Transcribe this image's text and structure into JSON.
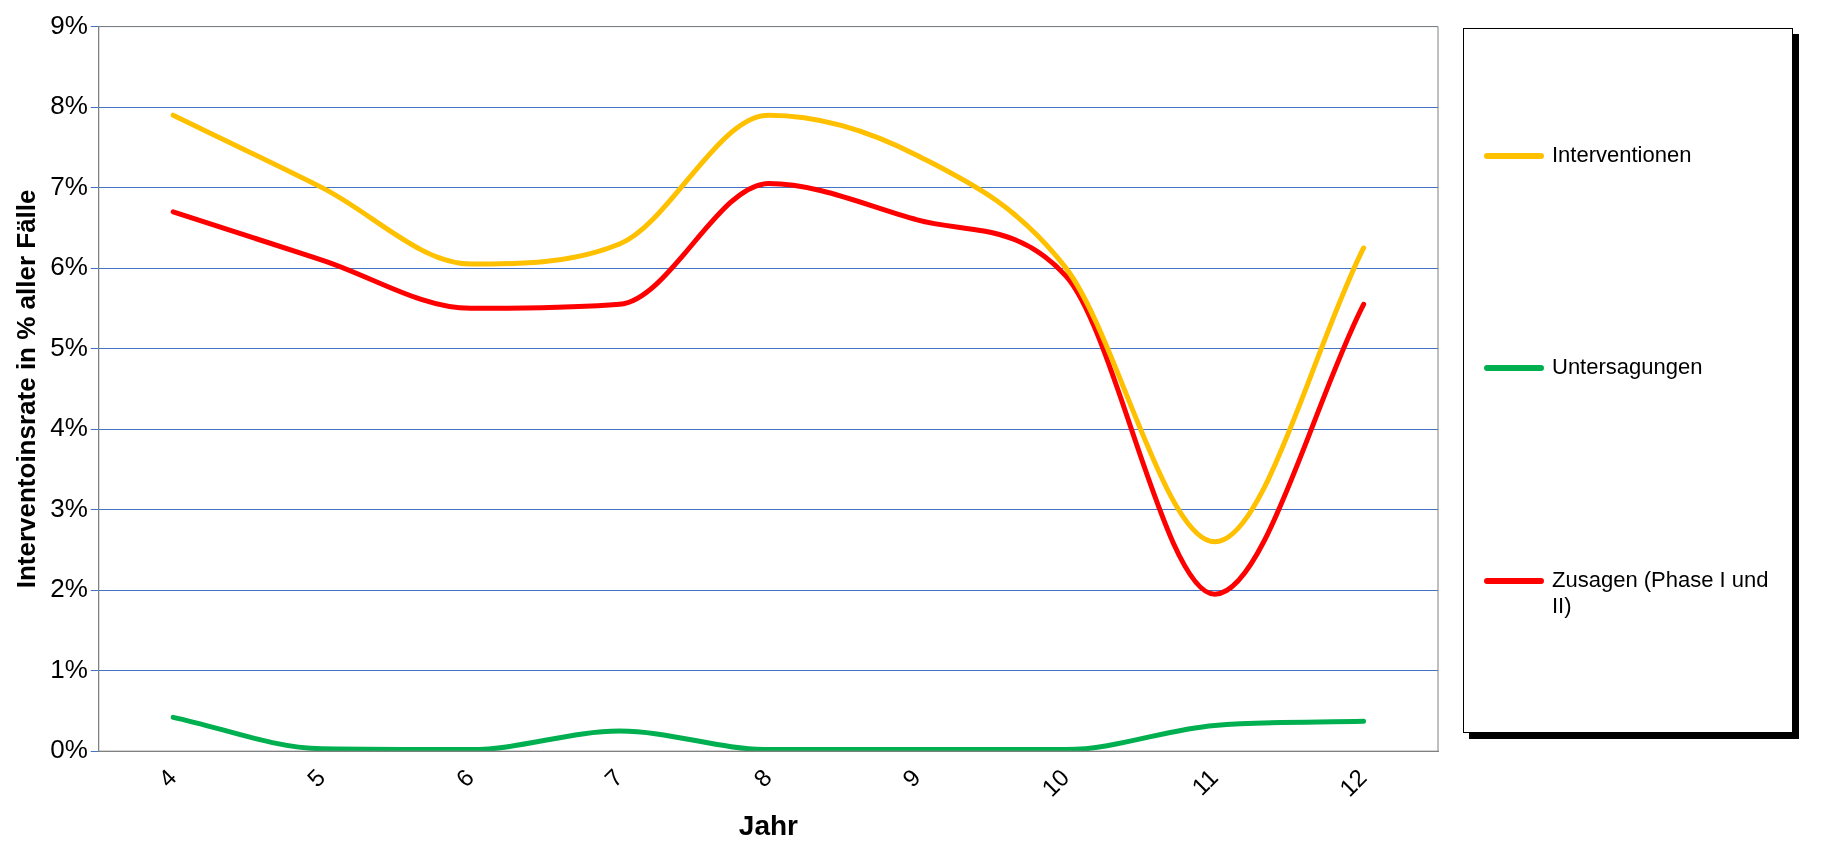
{
  "chart_data": {
    "type": "line",
    "xlabel": "Jahr",
    "ylabel": "Interventoinsrate in % aller Fälle",
    "categories": [
      "4",
      "5",
      "6",
      "7",
      "8",
      "9",
      "10",
      "11",
      "12"
    ],
    "series": [
      {
        "name": "Interventionen",
        "color": "#ffc000",
        "values": [
          7.9,
          7.0,
          6.05,
          6.3,
          7.9,
          7.4,
          6.0,
          2.6,
          6.25
        ]
      },
      {
        "name": "Untersagungen",
        "color": "#00b050",
        "values": [
          0.42,
          0.03,
          0.02,
          0.25,
          0.02,
          0.02,
          0.02,
          0.32,
          0.37
        ]
      },
      {
        "name": "Zusagen (Phase I und II)",
        "color": "#ff0000",
        "values": [
          6.7,
          6.1,
          5.5,
          5.55,
          7.05,
          6.6,
          5.9,
          1.95,
          5.55
        ]
      }
    ],
    "ylim": [
      0,
      9
    ],
    "yticks": [
      {
        "value": 0,
        "label": "0%"
      },
      {
        "value": 1,
        "label": "1%"
      },
      {
        "value": 2,
        "label": "2%"
      },
      {
        "value": 3,
        "label": "3%"
      },
      {
        "value": 4,
        "label": "4%"
      },
      {
        "value": 5,
        "label": "5%"
      },
      {
        "value": 6,
        "label": "6%"
      },
      {
        "value": 7,
        "label": "7%"
      },
      {
        "value": 8,
        "label": "8%"
      },
      {
        "value": 9,
        "label": "9%"
      }
    ],
    "grid": "y",
    "legend": "right",
    "marker": "none",
    "line_style": "solid"
  }
}
